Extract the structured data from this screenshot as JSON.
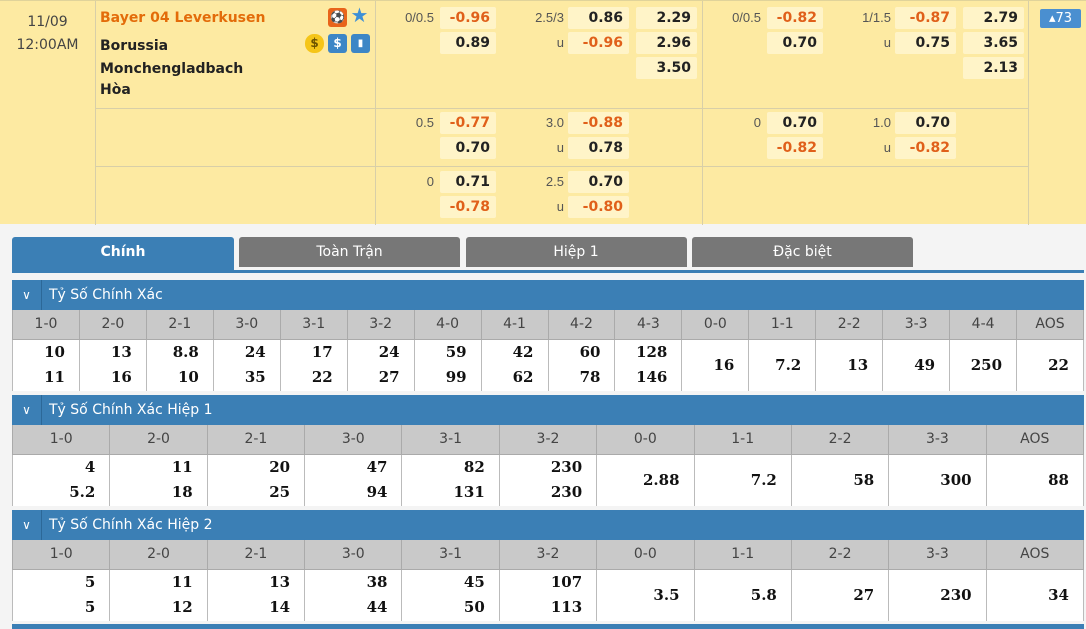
{
  "match": {
    "date": "11/09",
    "time": "12:00AM",
    "home": "Bayer 04 Leverkusen",
    "away": "Borussia Monchengladbach",
    "draw": "Hòa",
    "more_count": "▴73",
    "icons": [
      "live-icon",
      "star-icon",
      "coin-icon",
      "dollar-icon",
      "stats-icon"
    ]
  },
  "odds_rows": [
    {
      "g": [
        {
          "hdp": "0/0.5",
          "h1": "-0.96",
          "h2": "0.89",
          "ou": "2.5/3",
          "o1": "0.86",
          "u_label": "u",
          "o2": "-0.96",
          "x": [
            "2.29",
            "2.96",
            "3.50"
          ]
        },
        {
          "hdp": "0/0.5",
          "h1": "-0.82",
          "h2": "0.70",
          "ou": "1/1.5",
          "o1": "-0.87",
          "u_label": "u",
          "o2": "0.75",
          "x": [
            "2.79",
            "3.65",
            "2.13"
          ]
        }
      ]
    },
    {
      "g": [
        {
          "hdp": "0.5",
          "h1": "-0.77",
          "h2": "0.70",
          "ou": "3.0",
          "o1": "-0.88",
          "u_label": "u",
          "o2": "0.78",
          "x": []
        },
        {
          "hdp": "0",
          "h1": "0.70",
          "h2": "-0.82",
          "ou": "1.0",
          "o1": "0.70",
          "u_label": "u",
          "o2": "-0.82",
          "x": []
        }
      ]
    },
    {
      "g": [
        {
          "hdp": "0",
          "h1": "0.71",
          "h2": "-0.78",
          "ou": "2.5",
          "o1": "0.70",
          "u_label": "u",
          "o2": "-0.80",
          "x": []
        },
        null
      ]
    }
  ],
  "tabs": [
    "Chính",
    "Toàn Trận",
    "Hiệp 1",
    "Đặc biệt"
  ],
  "colors": {
    "accent": "#3b7fb5",
    "negative": "#e0601a",
    "home": "#e36c0a",
    "bg": "#fdeaa2"
  },
  "sections": [
    {
      "title": "Tỷ Số Chính Xác",
      "headers": [
        "1-0",
        "2-0",
        "2-1",
        "3-0",
        "3-1",
        "3-2",
        "4-0",
        "4-1",
        "4-2",
        "4-3",
        "0-0",
        "1-1",
        "2-2",
        "3-3",
        "4-4",
        "AOS"
      ],
      "values": [
        [
          "10",
          "11"
        ],
        [
          "13",
          "16"
        ],
        [
          "8.8",
          "10"
        ],
        [
          "24",
          "35"
        ],
        [
          "17",
          "22"
        ],
        [
          "24",
          "27"
        ],
        [
          "59",
          "99"
        ],
        [
          "42",
          "62"
        ],
        [
          "60",
          "78"
        ],
        [
          "128",
          "146"
        ],
        [
          "16"
        ],
        [
          "7.2"
        ],
        [
          "13"
        ],
        [
          "49"
        ],
        [
          "250"
        ],
        [
          "22"
        ]
      ]
    },
    {
      "title": "Tỷ Số Chính Xác Hiệp 1",
      "headers": [
        "1-0",
        "2-0",
        "2-1",
        "3-0",
        "3-1",
        "3-2",
        "0-0",
        "1-1",
        "2-2",
        "3-3",
        "AOS"
      ],
      "values": [
        [
          "4",
          "5.2"
        ],
        [
          "11",
          "18"
        ],
        [
          "20",
          "25"
        ],
        [
          "47",
          "94"
        ],
        [
          "82",
          "131"
        ],
        [
          "230",
          "230"
        ],
        [
          "2.88"
        ],
        [
          "7.2"
        ],
        [
          "58"
        ],
        [
          "300"
        ],
        [
          "88"
        ]
      ]
    },
    {
      "title": "Tỷ Số Chính Xác Hiệp 2",
      "headers": [
        "1-0",
        "2-0",
        "2-1",
        "3-0",
        "3-1",
        "3-2",
        "0-0",
        "1-1",
        "2-2",
        "3-3",
        "AOS"
      ],
      "values": [
        [
          "5",
          "5"
        ],
        [
          "11",
          "12"
        ],
        [
          "13",
          "14"
        ],
        [
          "38",
          "44"
        ],
        [
          "45",
          "50"
        ],
        [
          "107",
          "113"
        ],
        [
          "3.5"
        ],
        [
          "5.8"
        ],
        [
          "27"
        ],
        [
          "230"
        ],
        [
          "34"
        ]
      ]
    }
  ]
}
